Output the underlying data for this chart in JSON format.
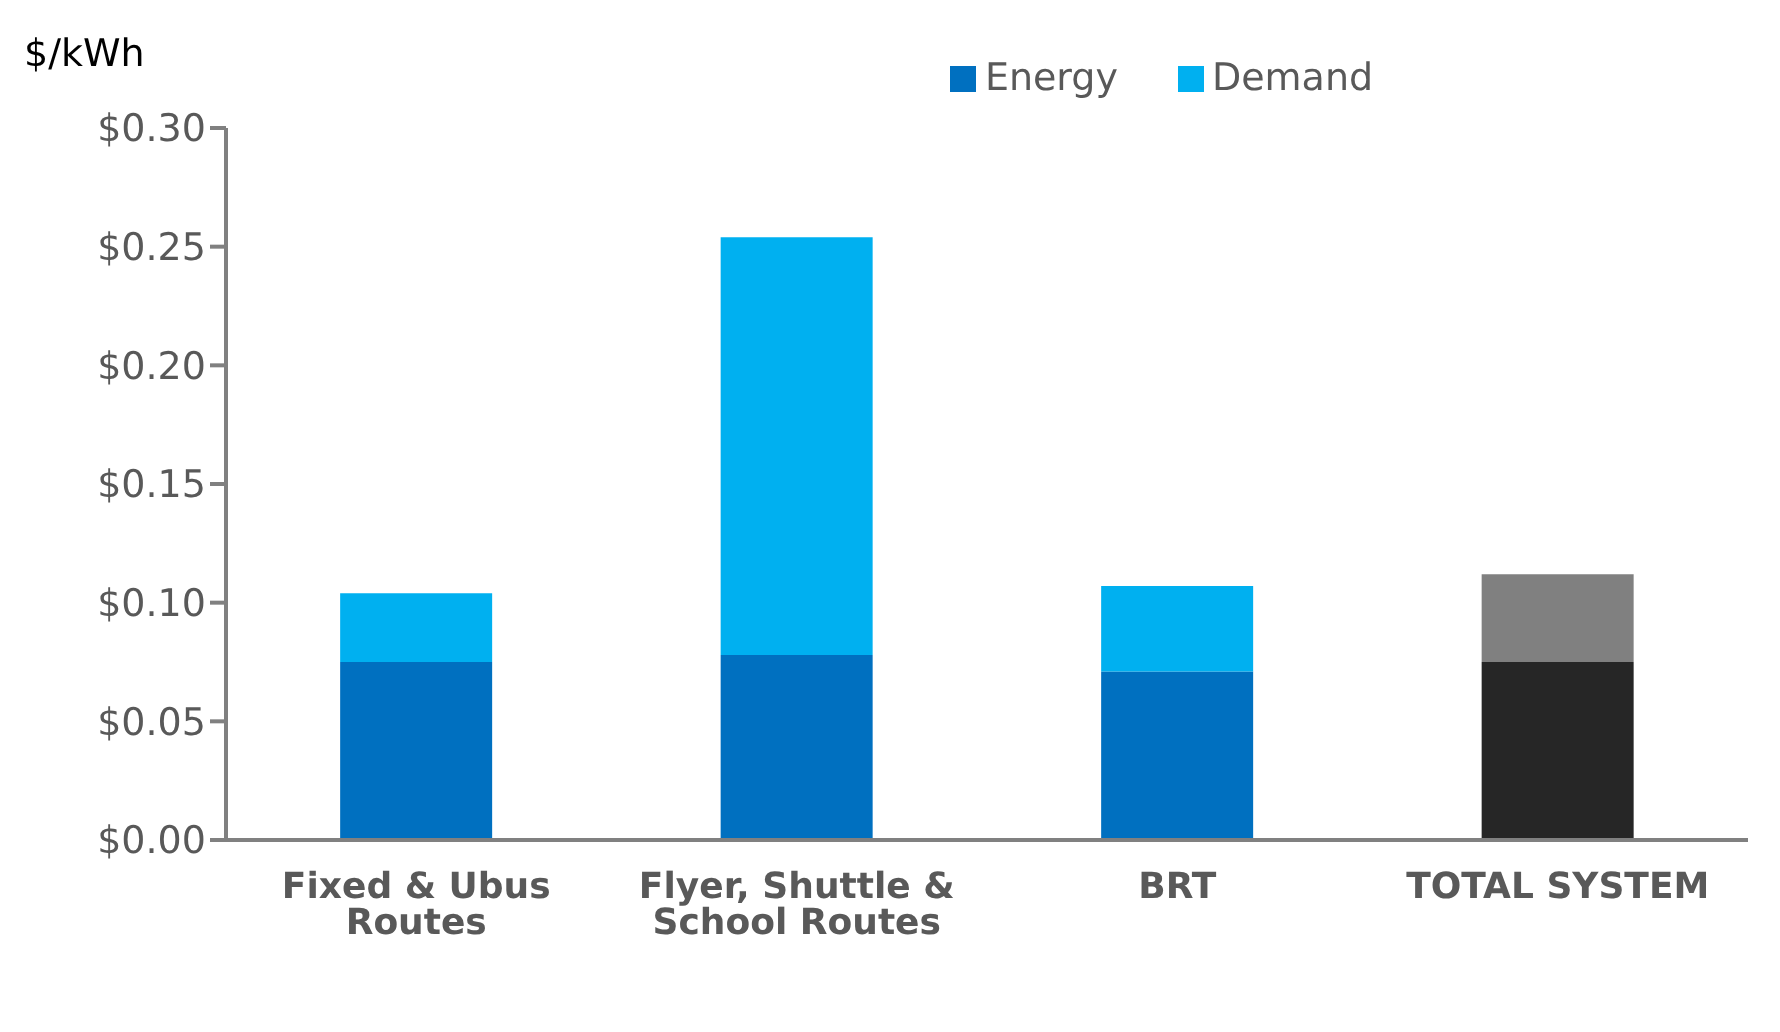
{
  "chart_data": {
    "type": "bar",
    "stacked": true,
    "ylabel": "$/kWh",
    "categories": [
      "Fixed & Ubus Routes",
      "Flyer, Shuttle & School Routes",
      "BRT",
      "TOTAL SYSTEM"
    ],
    "series": [
      {
        "name": "Energy",
        "color": "#0070c0",
        "colors": [
          "#0070c0",
          "#0070c0",
          "#0070c0",
          "#262626"
        ],
        "values": [
          0.075,
          0.078,
          0.071,
          0.075
        ]
      },
      {
        "name": "Demand",
        "color": "#00b0f0",
        "colors": [
          "#00b0f0",
          "#00b0f0",
          "#00b0f0",
          "#808080"
        ],
        "values": [
          0.029,
          0.176,
          0.036,
          0.037
        ]
      }
    ],
    "ylim": [
      0,
      0.3
    ],
    "yticks": [
      {
        "value": 0,
        "label": "$0.00"
      },
      {
        "value": 0.05,
        "label": "$0.05"
      },
      {
        "value": 0.1,
        "label": "$0.10"
      },
      {
        "value": 0.15,
        "label": "$0.15"
      },
      {
        "value": 0.2,
        "label": "$0.20"
      },
      {
        "value": 0.25,
        "label": "$0.25"
      },
      {
        "value": 0.3,
        "label": "$0.30"
      }
    ],
    "grid": false,
    "legend": "top"
  }
}
